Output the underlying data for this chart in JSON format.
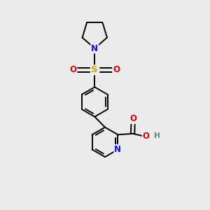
{
  "background_color": "#ebebeb",
  "bond_color": "#000000",
  "atom_colors": {
    "N_pyr": "#1010dd",
    "N_py": "#1010dd",
    "O": "#dd0000",
    "S": "#ccaa00",
    "H": "#4a8888",
    "C": "#000000"
  },
  "lw": 1.4,
  "figsize": [
    3.0,
    3.0
  ],
  "dpi": 100
}
